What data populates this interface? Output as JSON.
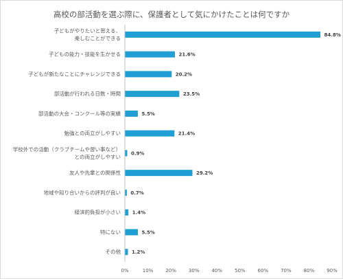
{
  "chart_data": {
    "type": "bar",
    "orientation": "horizontal",
    "title": "高校の部活動を選ぶ際に、保護者として気にかけたことは何ですか",
    "categories": [
      [
        "子どもがやりたいと思える、",
        "楽しむことができる"
      ],
      [
        "子どもの能力・技能を生かせる"
      ],
      [
        "子どもが新たなことにチャレンジできる"
      ],
      [
        "部活動が行われる日数・時間"
      ],
      [
        "部活動の大会・コンクール等の実績"
      ],
      [
        "勉強との両立がしやすい"
      ],
      [
        "学校外での活動（クラブチームや習い事など）",
        "との両立がしやすい"
      ],
      [
        "友人や先輩との関係性"
      ],
      [
        "地域や知り合いからの評判が良い"
      ],
      [
        "経済的負担が小さい"
      ],
      [
        "特にない"
      ],
      [
        "その他"
      ]
    ],
    "values": [
      84.8,
      21.6,
      20.2,
      23.5,
      5.5,
      21.4,
      0.9,
      29.2,
      0.7,
      1.4,
      5.5,
      1.2
    ],
    "value_labels": [
      "84.8%",
      "21.6%",
      "20.2%",
      "23.5%",
      "5.5%",
      "21.4%",
      "0.9%",
      "29.2%",
      "0.7%",
      "1.4%",
      "5.5%",
      "1.2%"
    ],
    "xlim": [
      0,
      90
    ],
    "xticks": [
      "0%",
      "10%",
      "20%",
      "30%",
      "40%",
      "50%",
      "60%",
      "70%",
      "80%",
      "90%"
    ],
    "grid": false,
    "bar_color": "#1f9fd4",
    "axis_color": "#bfbfbf"
  }
}
